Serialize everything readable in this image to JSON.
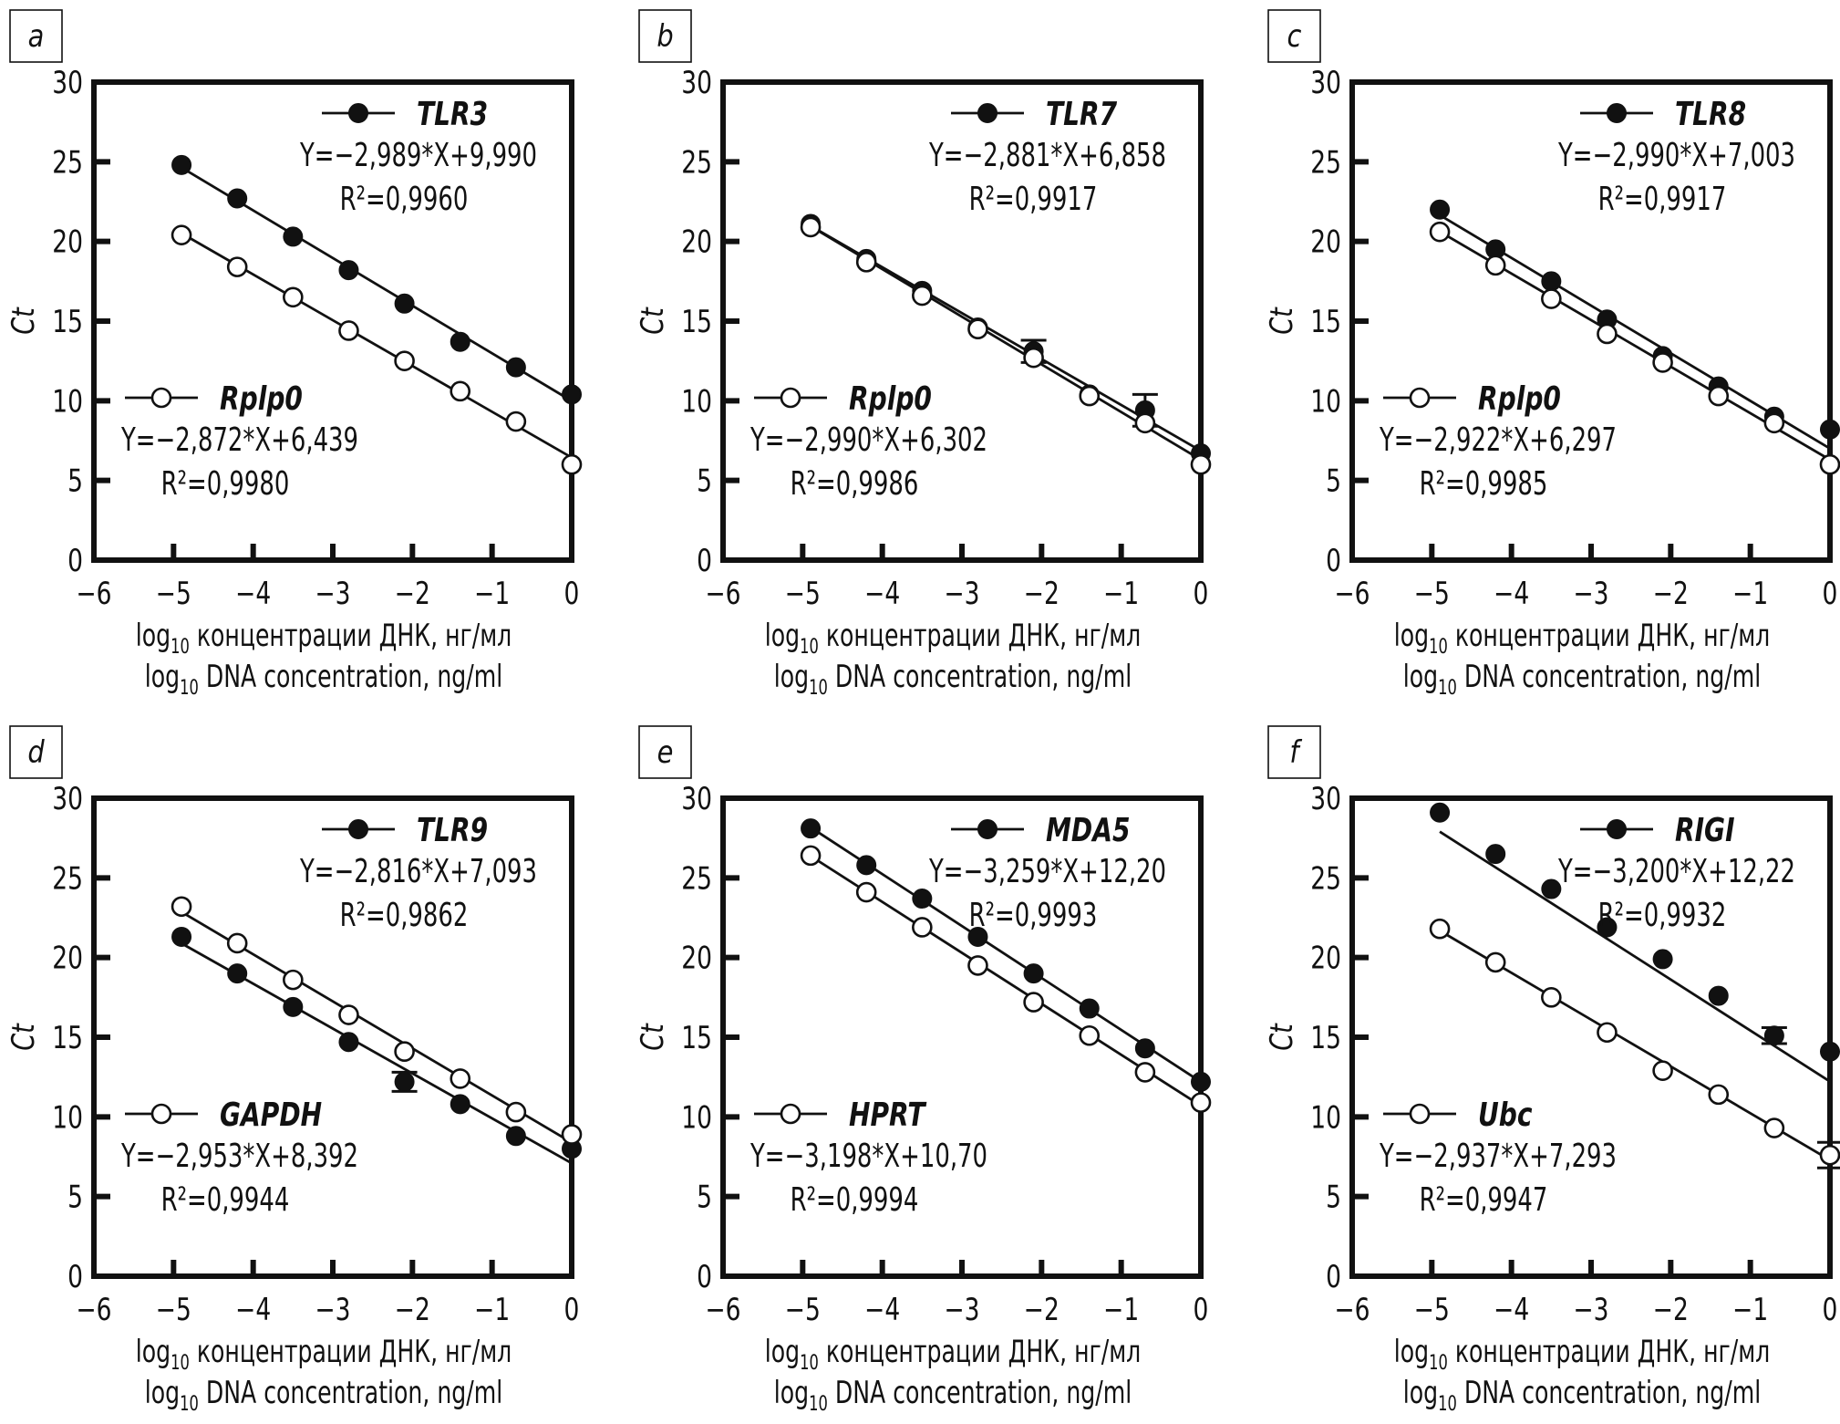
{
  "figure": {
    "colors": {
      "ink": "#111111",
      "background": "#ffffff"
    }
  },
  "chart_data": [
    {
      "panel": "a",
      "type": "scatter",
      "title": "",
      "xlabel_ru": "log10 концентрации ДНК, нг/мл",
      "xlabel_en": "log10 DNA concentration, ng/ml",
      "ylabel": "Ct",
      "xlim": [
        -6,
        0
      ],
      "ylim": [
        0,
        30
      ],
      "xticks": [
        -6,
        -5,
        -4,
        -3,
        -2,
        -1,
        0
      ],
      "yticks": [
        0,
        5,
        10,
        15,
        20,
        25,
        30
      ],
      "grid": false,
      "x": [
        -4.9,
        -4.2,
        -3.5,
        -2.8,
        -2.1,
        -1.4,
        -0.7,
        0
      ],
      "series": [
        {
          "name": "TLR3",
          "marker": "filled",
          "legend_position": "top-right",
          "values": [
            24.8,
            22.7,
            20.3,
            18.2,
            16.1,
            13.7,
            12.1,
            10.4
          ],
          "errors": [
            0,
            0,
            0,
            0,
            0,
            0,
            0,
            0
          ],
          "fit": {
            "slope": -2.989,
            "intercept": 9.99
          },
          "equation": "Y=−2,989*X+9,990",
          "r2": "R²=0,9960"
        },
        {
          "name": "Rplp0",
          "marker": "open",
          "legend_position": "bottom-left",
          "values": [
            20.4,
            18.4,
            16.5,
            14.4,
            12.5,
            10.6,
            8.7,
            6.0
          ],
          "errors": [
            0,
            0,
            0,
            0,
            0,
            0,
            0,
            0
          ],
          "fit": {
            "slope": -2.872,
            "intercept": 6.439
          },
          "equation": "Y=−2,872*X+6,439",
          "r2": "R²=0,9980"
        }
      ]
    },
    {
      "panel": "b",
      "type": "scatter",
      "title": "",
      "xlabel_ru": "log10 концентрации ДНК, нг/мл",
      "xlabel_en": "log10 DNA concentration, ng/ml",
      "ylabel": "Ct",
      "xlim": [
        -6,
        0
      ],
      "ylim": [
        0,
        30
      ],
      "xticks": [
        -6,
        -5,
        -4,
        -3,
        -2,
        -1,
        0
      ],
      "yticks": [
        0,
        5,
        10,
        15,
        20,
        25,
        30
      ],
      "grid": false,
      "x": [
        -4.9,
        -4.2,
        -3.5,
        -2.8,
        -2.1,
        -1.4,
        -0.7,
        0
      ],
      "series": [
        {
          "name": "TLR7",
          "marker": "filled",
          "legend_position": "top-right",
          "values": [
            21.1,
            18.9,
            16.9,
            14.6,
            13.1,
            10.4,
            9.4,
            6.7
          ],
          "errors": [
            0,
            0,
            0,
            0,
            0.7,
            0,
            1.0,
            0
          ],
          "fit": {
            "slope": -2.881,
            "intercept": 6.858
          },
          "equation": "Y=−2,881*X+6,858",
          "r2": "R²=0,9917"
        },
        {
          "name": "Rplp0",
          "marker": "open",
          "legend_position": "bottom-left",
          "values": [
            20.9,
            18.7,
            16.6,
            14.5,
            12.7,
            10.3,
            8.6,
            6.0
          ],
          "errors": [
            0,
            0,
            0,
            0,
            0,
            0,
            0,
            0
          ],
          "fit": {
            "slope": -2.99,
            "intercept": 6.302
          },
          "equation": "Y=−2,990*X+6,302",
          "r2": "R²=0,9986"
        }
      ]
    },
    {
      "panel": "c",
      "type": "scatter",
      "title": "",
      "xlabel_ru": "log10 концентрации ДНК, нг/мл",
      "xlabel_en": "log10 DNA concentration, ng/ml",
      "ylabel": "Ct",
      "xlim": [
        -6,
        0
      ],
      "ylim": [
        0,
        30
      ],
      "xticks": [
        -6,
        -5,
        -4,
        -3,
        -2,
        -1,
        0
      ],
      "yticks": [
        0,
        5,
        10,
        15,
        20,
        25,
        30
      ],
      "grid": false,
      "x": [
        -4.9,
        -4.2,
        -3.5,
        -2.8,
        -2.1,
        -1.4,
        -0.7,
        0
      ],
      "series": [
        {
          "name": "TLR8",
          "marker": "filled",
          "legend_position": "top-right",
          "values": [
            22.0,
            19.5,
            17.5,
            15.1,
            12.8,
            10.9,
            9.0,
            8.2
          ],
          "errors": [
            0,
            0,
            0,
            0,
            0,
            0,
            0,
            0
          ],
          "fit": {
            "slope": -2.99,
            "intercept": 7.003
          },
          "equation": "Y=−2,990*X+7,003",
          "r2": "R²=0,9917"
        },
        {
          "name": "Rplp0",
          "marker": "open",
          "legend_position": "bottom-left",
          "values": [
            20.6,
            18.5,
            16.4,
            14.2,
            12.4,
            10.3,
            8.6,
            6.0
          ],
          "errors": [
            0,
            0,
            0,
            0,
            0,
            0,
            0,
            0
          ],
          "fit": {
            "slope": -2.922,
            "intercept": 6.297
          },
          "equation": "Y=−2,922*X+6,297",
          "r2": "R²=0,9985"
        }
      ]
    },
    {
      "panel": "d",
      "type": "scatter",
      "title": "",
      "xlabel_ru": "log10 концентрации ДНК, нг/мл",
      "xlabel_en": "log10 DNA concentration, ng/ml",
      "ylabel": "Ct",
      "xlim": [
        -6,
        0
      ],
      "ylim": [
        0,
        30
      ],
      "xticks": [
        -6,
        -5,
        -4,
        -3,
        -2,
        -1,
        0
      ],
      "yticks": [
        0,
        5,
        10,
        15,
        20,
        25,
        30
      ],
      "grid": false,
      "x": [
        -4.9,
        -4.2,
        -3.5,
        -2.8,
        -2.1,
        -1.4,
        -0.7,
        0
      ],
      "series": [
        {
          "name": "TLR9",
          "marker": "filled",
          "legend_position": "top-right",
          "values": [
            21.3,
            19.0,
            16.9,
            14.7,
            12.2,
            10.8,
            8.8,
            8.0
          ],
          "errors": [
            0,
            0,
            0,
            0,
            0.6,
            0,
            0,
            0
          ],
          "fit": {
            "slope": -2.816,
            "intercept": 7.093
          },
          "equation": "Y=−2,816*X+7,093",
          "r2": "R²=0,9862"
        },
        {
          "name": "GAPDH",
          "marker": "open",
          "legend_position": "bottom-left",
          "values": [
            23.2,
            20.9,
            18.6,
            16.4,
            14.1,
            12.4,
            10.3,
            8.9
          ],
          "errors": [
            0,
            0,
            0,
            0,
            0,
            0,
            0,
            0
          ],
          "fit": {
            "slope": -2.953,
            "intercept": 8.392
          },
          "equation": "Y=−2,953*X+8,392",
          "r2": "R²=0,9944"
        }
      ]
    },
    {
      "panel": "e",
      "type": "scatter",
      "title": "",
      "xlabel_ru": "log10 концентрации ДНК, нг/мл",
      "xlabel_en": "log10 DNA concentration, ng/ml",
      "ylabel": "Ct",
      "xlim": [
        -6,
        0
      ],
      "ylim": [
        0,
        30
      ],
      "xticks": [
        -6,
        -5,
        -4,
        -3,
        -2,
        -1,
        0
      ],
      "yticks": [
        0,
        5,
        10,
        15,
        20,
        25,
        30
      ],
      "grid": false,
      "x": [
        -4.9,
        -4.2,
        -3.5,
        -2.8,
        -2.1,
        -1.4,
        -0.7,
        0
      ],
      "series": [
        {
          "name": "MDA5",
          "marker": "filled",
          "legend_position": "top-right",
          "values": [
            28.1,
            25.8,
            23.7,
            21.3,
            19.0,
            16.8,
            14.3,
            12.2
          ],
          "errors": [
            0,
            0,
            0,
            0,
            0,
            0,
            0,
            0
          ],
          "fit": {
            "slope": -3.259,
            "intercept": 12.2
          },
          "equation": "Y=−3,259*X+12,20",
          "r2": "R²=0,9993"
        },
        {
          "name": "HPRT",
          "marker": "open",
          "legend_position": "bottom-left",
          "values": [
            26.4,
            24.1,
            21.9,
            19.5,
            17.2,
            15.1,
            12.8,
            10.9
          ],
          "errors": [
            0,
            0,
            0,
            0,
            0,
            0,
            0,
            0
          ],
          "fit": {
            "slope": -3.198,
            "intercept": 10.7
          },
          "equation": "Y=−3,198*X+10,70",
          "r2": "R²=0,9994"
        }
      ]
    },
    {
      "panel": "f",
      "type": "scatter",
      "title": "",
      "xlabel_ru": "log10 концентрации ДНК, нг/мл",
      "xlabel_en": "log10 DNA concentration, ng/ml",
      "ylabel": "Ct",
      "xlim": [
        -6,
        0
      ],
      "ylim": [
        0,
        30
      ],
      "xticks": [
        -6,
        -5,
        -4,
        -3,
        -2,
        -1,
        0
      ],
      "yticks": [
        0,
        5,
        10,
        15,
        20,
        25,
        30
      ],
      "grid": false,
      "x": [
        -4.9,
        -4.2,
        -3.5,
        -2.8,
        -2.1,
        -1.4,
        -0.7,
        0
      ],
      "series": [
        {
          "name": "RIGI",
          "marker": "filled",
          "legend_position": "top-right",
          "values": [
            29.1,
            26.5,
            24.3,
            21.9,
            19.9,
            17.6,
            15.1,
            14.1
          ],
          "errors": [
            0,
            0,
            0,
            0,
            0,
            0,
            0.5,
            0
          ],
          "fit": {
            "slope": -3.2,
            "intercept": 12.22
          },
          "equation": "Y=−3,200*X+12,22",
          "r2": "R²=0,9932"
        },
        {
          "name": "Ubc",
          "marker": "open",
          "legend_position": "bottom-left",
          "values": [
            21.8,
            19.7,
            17.5,
            15.3,
            12.9,
            11.4,
            9.3,
            7.6
          ],
          "errors": [
            0,
            0,
            0,
            0,
            0,
            0,
            0,
            0.8
          ],
          "fit": {
            "slope": -2.937,
            "intercept": 7.293
          },
          "equation": "Y=−2,937*X+7,293",
          "r2": "R²=0,9947"
        }
      ]
    }
  ]
}
